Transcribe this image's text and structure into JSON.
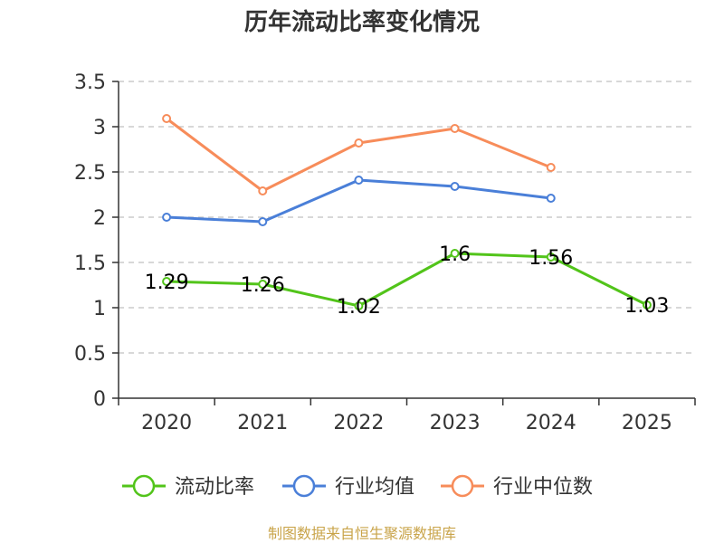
{
  "chart_data": {
    "type": "line",
    "title": "历年流动比率变化情况",
    "categories": [
      "2020",
      "2021",
      "2022",
      "2023",
      "2024",
      "2025"
    ],
    "ylim": [
      0,
      3.5
    ],
    "yticks": [
      "0",
      "0.5",
      "1",
      "1.5",
      "2",
      "2.5",
      "3",
      "3.5"
    ],
    "series": [
      {
        "name": "流动比率",
        "color": "#52c41a",
        "values": [
          1.29,
          1.26,
          1.02,
          1.6,
          1.56,
          1.03
        ],
        "labels": [
          "1.29",
          "1.26",
          "1.02",
          "1.6",
          "1.56",
          "1.03"
        ]
      },
      {
        "name": "行业均值",
        "color": "#4a7fd8",
        "values": [
          2.0,
          1.95,
          2.41,
          2.34,
          2.21,
          null
        ]
      },
      {
        "name": "行业中位数",
        "color": "#f78c5a",
        "values": [
          3.09,
          2.29,
          2.82,
          2.98,
          2.55,
          null
        ]
      }
    ],
    "grid": true,
    "legend_position": "bottom"
  },
  "source": "制图数据来自恒生聚源数据库"
}
